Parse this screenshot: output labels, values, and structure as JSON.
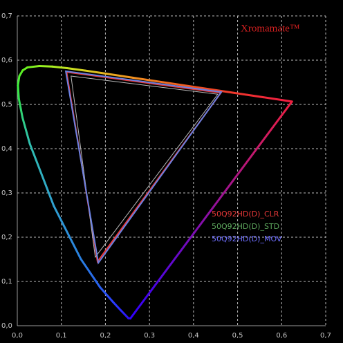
{
  "chart_data": {
    "type": "line",
    "annotation": "Xromamate™",
    "annotation_color": "#d42020",
    "xlim": [
      0,
      0.7
    ],
    "ylim": [
      0,
      0.7
    ],
    "xticks": [
      {
        "value": 0,
        "label": "0,0"
      },
      {
        "value": 0.1,
        "label": "0,1"
      },
      {
        "value": 0.2,
        "label": "0,2"
      },
      {
        "value": 0.3,
        "label": "0,3"
      },
      {
        "value": 0.4,
        "label": "0,4"
      },
      {
        "value": 0.5,
        "label": "0,5"
      },
      {
        "value": 0.6,
        "label": "0,6"
      },
      {
        "value": 0.7,
        "label": "0,7"
      }
    ],
    "yticks": [
      {
        "value": 0,
        "label": "0,0"
      },
      {
        "value": 0.1,
        "label": "0,1"
      },
      {
        "value": 0.2,
        "label": "0,2"
      },
      {
        "value": 0.3,
        "label": "0,3"
      },
      {
        "value": 0.4,
        "label": "0,4"
      },
      {
        "value": 0.5,
        "label": "0,5"
      },
      {
        "value": 0.6,
        "label": "0,6"
      },
      {
        "value": 0.7,
        "label": "0,7"
      }
    ],
    "grid": true,
    "closed": true,
    "locus": {
      "x": [
        0.2568,
        0.2522,
        0.2347,
        0.216,
        0.1877,
        0.144,
        0.0828,
        0.0282,
        0.0119,
        0.0035,
        0.0014,
        0.0046,
        0.0123,
        0.0231,
        0.0501,
        0.0792,
        0.1127,
        0.1531,
        0.2026,
        0.2623,
        0.3315,
        0.4035,
        0.5203,
        0.6005,
        0.6234
      ],
      "y": [
        0.0166,
        0.0169,
        0.035,
        0.055,
        0.0871,
        0.151,
        0.2708,
        0.4117,
        0.4699,
        0.513,
        0.5431,
        0.5638,
        0.577,
        0.5837,
        0.5868,
        0.5856,
        0.5821,
        0.5766,
        0.5694,
        0.5604,
        0.5501,
        0.5393,
        0.5219,
        0.5099,
        0.5065
      ],
      "colors": [
        "#3000ff",
        "#2a10f0",
        "#2a2aff",
        "#2a40ff",
        "#2860f0",
        "#2a80e0",
        "#30a0d0",
        "#30c0b0",
        "#30d080",
        "#30e050",
        "#40f040",
        "#50f030",
        "#60f020",
        "#70f020",
        "#90f020",
        "#a8f020",
        "#c0e020",
        "#d8d020",
        "#e8b020",
        "#f09020",
        "#f07020",
        "#f05020",
        "#f03030",
        "#f02040",
        "#f02040"
      ]
    },
    "series": [
      {
        "name": "50Q92HD(D)_CLR",
        "color": "#e83838",
        "x": [
          0.112,
          0.462,
          0.182
        ],
        "y": [
          0.573,
          0.526,
          0.145
        ]
      },
      {
        "name": "50Q92HD(D)_STD",
        "color": "#5ea85e",
        "line_color": "#b8b8b8",
        "x": [
          0.122,
          0.455,
          0.177
        ],
        "y": [
          0.564,
          0.523,
          0.155
        ]
      },
      {
        "name": "50Q92HD(D)_MOV",
        "color": "#6e6eff",
        "line_color": "#6a80e0",
        "x": [
          0.11,
          0.463,
          0.184
        ],
        "y": [
          0.575,
          0.528,
          0.142
        ]
      }
    ]
  }
}
